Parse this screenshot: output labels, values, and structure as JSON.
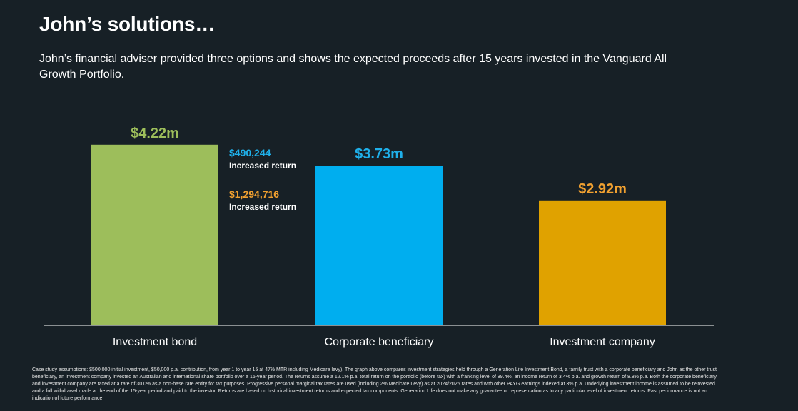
{
  "page": {
    "title": "John’s solutions…",
    "subtitle": "John’s financial adviser provided three options and shows the expected proceeds after 15 years invested in the Vanguard All Growth Portfolio.",
    "footnote": "Case study assumptions: $500,000 initial investment, $50,000 p.a. contribution, from year 1 to year 15 at 47% MTR including Medicare levy). The graph above compares investment strategies held through a Generation Life Investment Bond, a family trust with a corporate beneficiary and John as the other trust beneficiary, an investment company invested an Australian and international share portfolio over a 15-year period. The returns assume a 12.1% p.a. total return on the portfolio (before tax) with a franking level of 89.4%, an income return of 3.4% p.a. and growth return of 8.8% p.a. Both the corporate beneficiary and investment company are taxed at a rate of 30.0% as a non-base rate entity for tax purposes. Progressive personal marginal tax rates are used (including 2% Medicare Levy) as at 2024/2025 rates and with other PAYG earnings indexed at 3% p.a. Underlying investment income is assumed to be reinvested and a full withdrawal made at the end of the 15-year period and paid to the investor. Returns are based on historical investment returns and expected tax components. Generation Life does not make any guarantee or representation as to any particular level of investment returns. Past performance is not an indication of future performance."
  },
  "chart_data": {
    "type": "bar",
    "categories": [
      "Investment bond",
      "Corporate beneficiary",
      "Investment company"
    ],
    "values": [
      4.22,
      3.73,
      2.92
    ],
    "value_labels": [
      "$4.22m",
      "$3.73m",
      "$2.92m"
    ],
    "colors": [
      "#9dbe5b",
      "#00aeef",
      "#e0a200"
    ],
    "label_colors": [
      "#9dbe5b",
      "#1fb0ea",
      "#f0a030"
    ],
    "ylim": [
      0,
      5.0
    ],
    "grid": false,
    "annotations": [
      {
        "value": "$490,244",
        "label": "Increased return",
        "color": "#1fb0ea"
      },
      {
        "value": "$1,294,716",
        "label": "Increased return",
        "color": "#f0a030"
      }
    ]
  }
}
